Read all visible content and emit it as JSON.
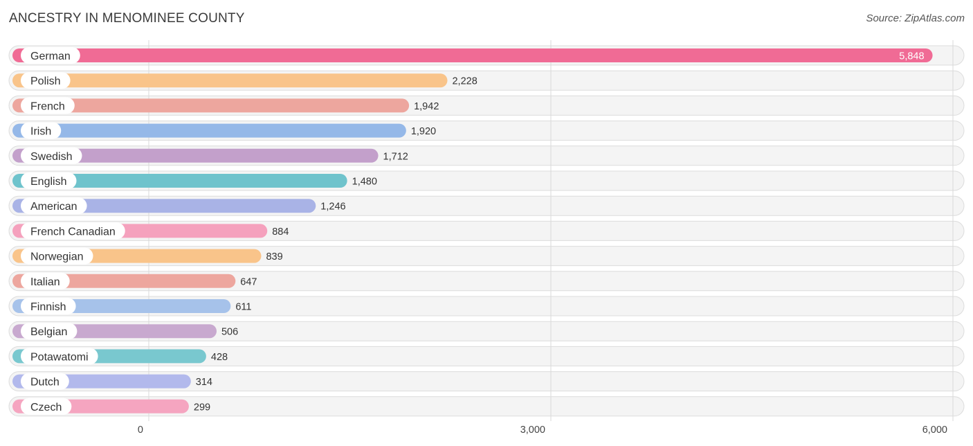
{
  "header": {
    "title": "ANCESTRY IN MENOMINEE COUNTY",
    "source": "Source: ZipAtlas.com"
  },
  "chart_data": {
    "type": "bar",
    "orientation": "horizontal",
    "title": "ANCESTRY IN MENOMINEE COUNTY",
    "categories": [
      "German",
      "Polish",
      "French",
      "Irish",
      "Swedish",
      "English",
      "American",
      "French Canadian",
      "Norwegian",
      "Italian",
      "Finnish",
      "Belgian",
      "Potawatomi",
      "Dutch",
      "Czech"
    ],
    "values": [
      5848,
      2228,
      1942,
      1920,
      1712,
      1480,
      1246,
      884,
      839,
      647,
      611,
      506,
      428,
      314,
      299
    ],
    "value_labels": [
      "5,848",
      "2,228",
      "1,942",
      "1,920",
      "1,712",
      "1,480",
      "1,246",
      "884",
      "839",
      "647",
      "611",
      "506",
      "428",
      "314",
      "299"
    ],
    "colors": [
      "#f06b95",
      "#f9c48a",
      "#eda69e",
      "#95b8e8",
      "#c3a0cb",
      "#6fc3cc",
      "#a9b3e6",
      "#f5a1bd",
      "#f9c48a",
      "#eda69e",
      "#a6c2ea",
      "#c8a9cf",
      "#79c8cf",
      "#b2b9ec",
      "#f5a5c0"
    ],
    "xlim": [
      0,
      6000
    ],
    "xticks": [
      0,
      3000,
      6000
    ],
    "xtick_labels": [
      "0",
      "3,000",
      "6,000"
    ],
    "grid": true
  }
}
